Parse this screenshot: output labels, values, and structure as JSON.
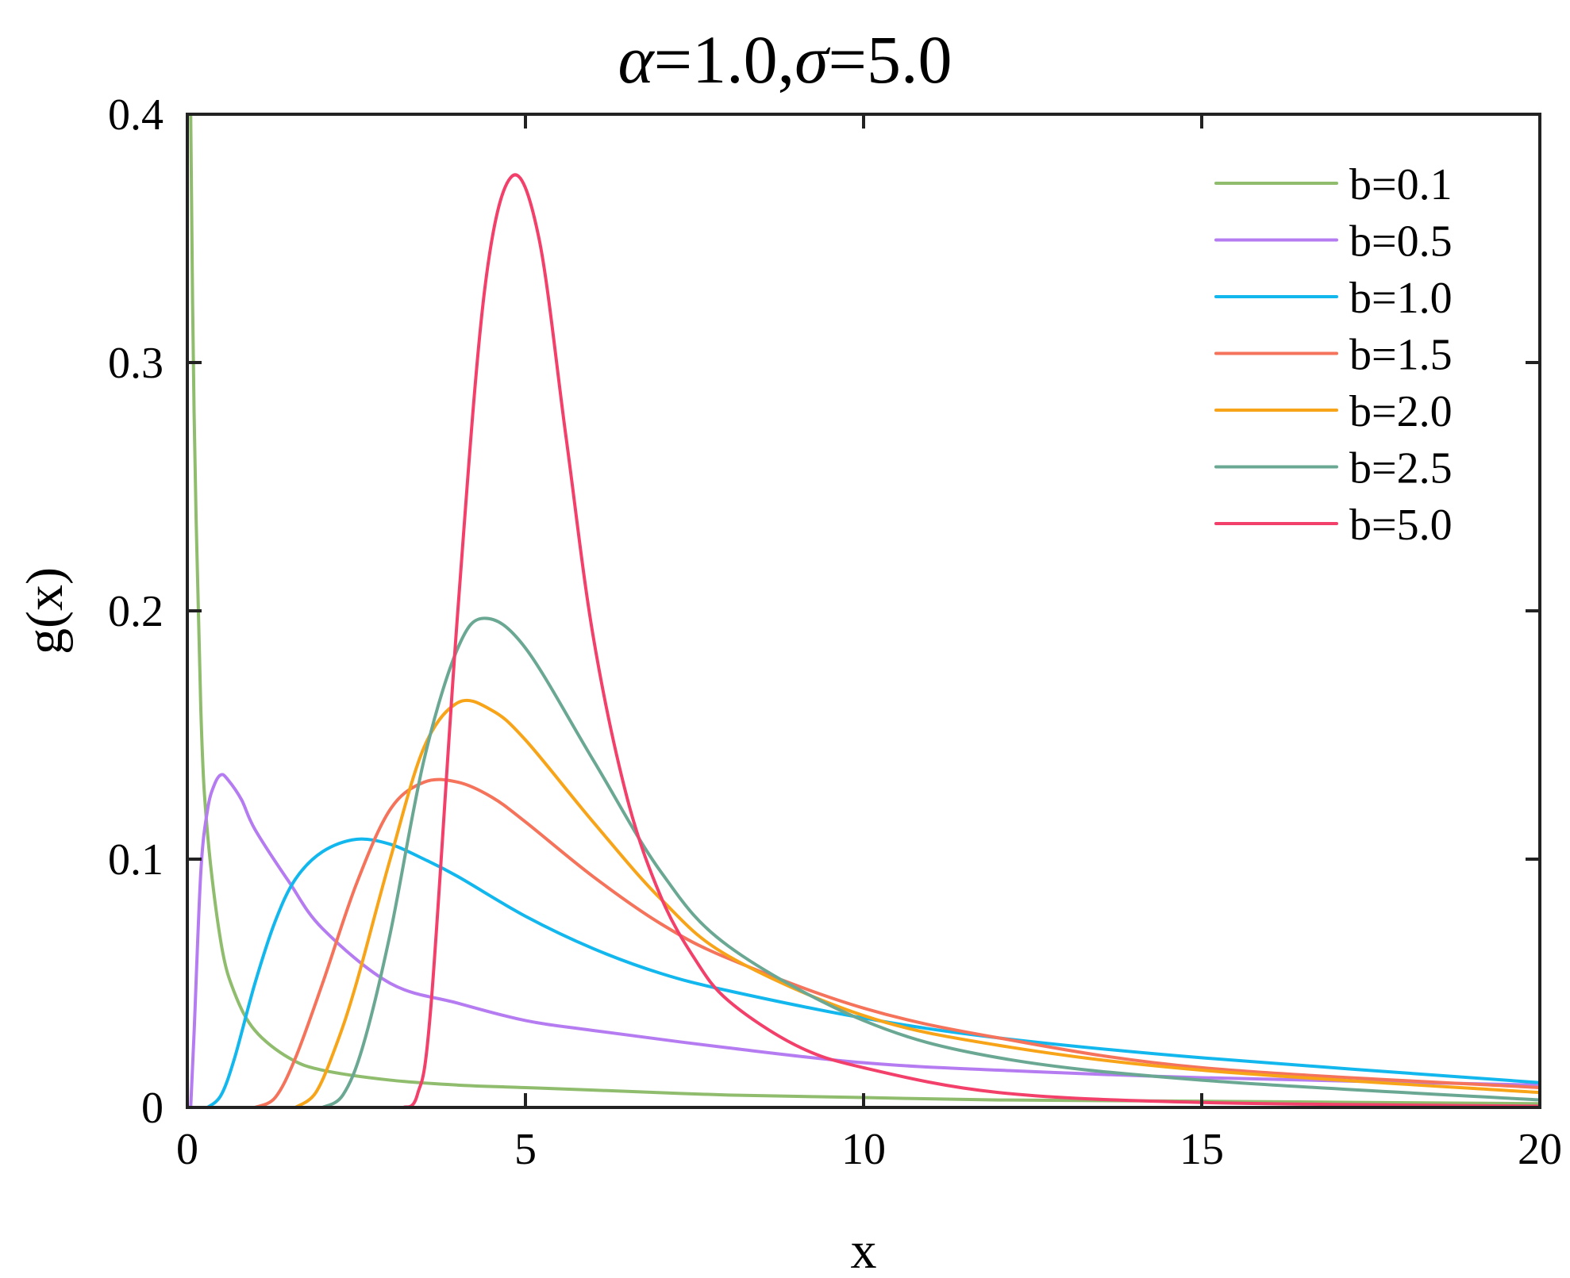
{
  "chart_data": {
    "type": "line",
    "title": "α=1.0,σ=5.0",
    "title_parts": {
      "alpha_symbol": "α",
      "alpha_text": "=1.0,",
      "sigma_symbol": "σ",
      "sigma_text": "=5.0"
    },
    "xlabel": "x",
    "ylabel": "g(x)",
    "xlim": [
      0,
      20
    ],
    "ylim": [
      0,
      0.4
    ],
    "x_ticks": [
      {
        "value": 0,
        "label": "0"
      },
      {
        "value": 5,
        "label": "5"
      },
      {
        "value": 10,
        "label": "10"
      },
      {
        "value": 15,
        "label": "15"
      },
      {
        "value": 20,
        "label": "20"
      }
    ],
    "y_ticks": [
      {
        "value": 0,
        "label": "0"
      },
      {
        "value": 0.1,
        "label": "0.1"
      },
      {
        "value": 0.2,
        "label": "0.2"
      },
      {
        "value": 0.3,
        "label": "0.3"
      },
      {
        "value": 0.4,
        "label": "0.4"
      }
    ],
    "grid": false,
    "legend_position": "top-right",
    "series": [
      {
        "name": "b=0.1",
        "color": "#8fbd6d",
        "x": [
          0.05,
          0.1,
          0.2,
          0.3,
          0.5,
          0.7,
          1,
          1.5,
          2,
          3,
          4,
          5,
          6,
          8,
          10,
          12,
          15,
          20
        ],
        "y": [
          0.4,
          0.28,
          0.16,
          0.11,
          0.066,
          0.046,
          0.031,
          0.02,
          0.015,
          0.011,
          0.009,
          0.008,
          0.007,
          0.005,
          0.004,
          0.003,
          0.0025,
          0.0015
        ]
      },
      {
        "name": "b=0.5",
        "color": "#b57cf2",
        "x": [
          0.05,
          0.1,
          0.2,
          0.3,
          0.4,
          0.5,
          0.6,
          0.8,
          1,
          1.5,
          2,
          3,
          4,
          5,
          6,
          8,
          10,
          12,
          15,
          20
        ],
        "y": [
          0.0,
          0.03,
          0.095,
          0.12,
          0.13,
          0.134,
          0.132,
          0.124,
          0.112,
          0.091,
          0.072,
          0.05,
          0.042,
          0.035,
          0.031,
          0.024,
          0.018,
          0.015,
          0.012,
          0.009
        ]
      },
      {
        "name": "b=1.0",
        "color": "#12b7ee",
        "x": [
          0.3,
          0.5,
          0.7,
          1,
          1.3,
          1.6,
          2,
          2.5,
          3,
          3.5,
          4,
          5,
          6,
          7,
          8,
          10,
          12,
          15,
          20
        ],
        "y": [
          0.0,
          0.005,
          0.02,
          0.05,
          0.075,
          0.092,
          0.103,
          0.108,
          0.106,
          0.1,
          0.093,
          0.077,
          0.064,
          0.054,
          0.047,
          0.036,
          0.028,
          0.02,
          0.01
        ]
      },
      {
        "name": "b=1.5",
        "color": "#f5735b",
        "x": [
          1,
          1.3,
          1.6,
          2,
          2.5,
          3,
          3.5,
          4,
          4.5,
          5,
          6,
          7,
          8,
          10,
          12,
          15,
          20
        ],
        "y": [
          0.0,
          0.004,
          0.02,
          0.05,
          0.09,
          0.12,
          0.131,
          0.131,
          0.125,
          0.115,
          0.093,
          0.074,
          0.06,
          0.04,
          0.028,
          0.016,
          0.008
        ]
      },
      {
        "name": "b=2.0",
        "color": "#f7a418",
        "x": [
          1.6,
          1.9,
          2.2,
          2.5,
          3,
          3.5,
          4,
          4.5,
          5,
          6,
          7,
          8,
          10,
          12,
          15,
          20
        ],
        "y": [
          0.0,
          0.006,
          0.025,
          0.05,
          0.1,
          0.145,
          0.163,
          0.16,
          0.148,
          0.115,
          0.084,
          0.061,
          0.037,
          0.025,
          0.015,
          0.006
        ]
      },
      {
        "name": "b=2.5",
        "color": "#6ba894",
        "x": [
          2.0,
          2.3,
          2.6,
          3,
          3.5,
          4,
          4.4,
          5,
          6,
          7,
          8,
          10,
          12,
          15,
          20
        ],
        "y": [
          0.0,
          0.005,
          0.025,
          0.07,
          0.14,
          0.185,
          0.197,
          0.185,
          0.14,
          0.095,
          0.065,
          0.035,
          0.02,
          0.011,
          0.003
        ]
      },
      {
        "name": "b=5.0",
        "color": "#f2406a",
        "x": [
          3.2,
          3.4,
          3.6,
          4,
          4.4,
          4.8,
          5.2,
          5.6,
          6,
          6.5,
          7,
          7.5,
          8,
          9,
          10,
          12,
          15,
          20
        ],
        "y": [
          0.0,
          0.005,
          0.04,
          0.2,
          0.33,
          0.375,
          0.35,
          0.27,
          0.19,
          0.125,
          0.085,
          0.06,
          0.043,
          0.025,
          0.016,
          0.006,
          0.002,
          0.0005
        ]
      }
    ]
  }
}
